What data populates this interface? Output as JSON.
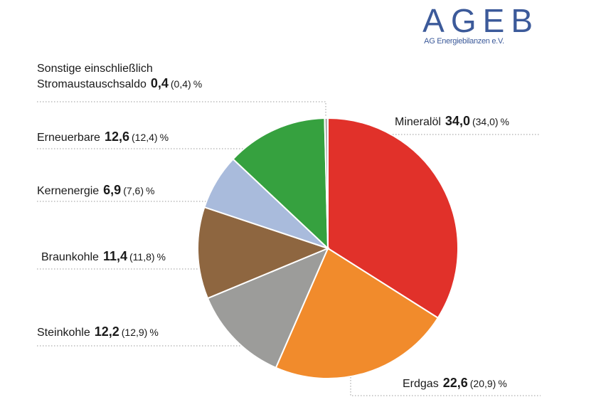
{
  "logo": {
    "word": "AGEB",
    "subtitle": "AG Energiebilanzen e.V."
  },
  "chart_data": {
    "type": "pie",
    "unit": "%",
    "categories": [
      "Mineralöl",
      "Erdgas",
      "Steinkohle",
      "Braunkohle",
      "Kernenergie",
      "Erneuerbare",
      "Sonstige einschließlich Stromaustauschsaldo"
    ],
    "values": [
      34.0,
      22.6,
      12.2,
      11.4,
      6.9,
      12.6,
      0.4
    ],
    "values_text": [
      "34,0",
      "22,6",
      "12,2",
      "11,4",
      "6,9",
      "12,6",
      "0,4"
    ],
    "previous_text": [
      "(34,0)",
      "(20,9)",
      "(12,9)",
      "(11,8)",
      "(7,6)",
      "(12,4)",
      "(0,4)"
    ],
    "colors": [
      "#e1312a",
      "#f18b2c",
      "#9c9c9a",
      "#8e6640",
      "#a9bbdc",
      "#36a13f",
      "#b0b0b0"
    ],
    "label_line1": "Sonstige einschließlich",
    "label_line2": "Stromaustauschsaldo"
  }
}
